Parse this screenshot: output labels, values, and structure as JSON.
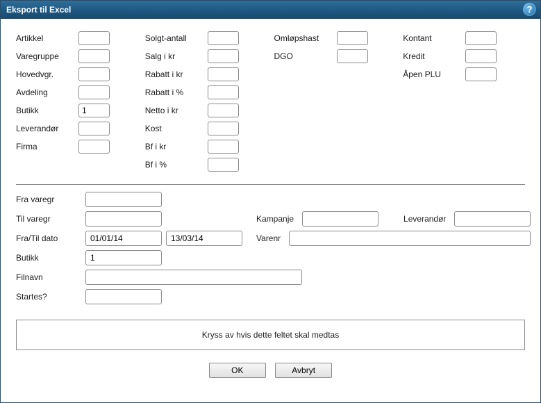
{
  "title": "Eksport til Excel",
  "columns": {
    "c1": [
      {
        "label": "Artikkel",
        "value": ""
      },
      {
        "label": "Varegruppe",
        "value": ""
      },
      {
        "label": "Hovedvgr.",
        "value": ""
      },
      {
        "label": "Avdeling",
        "value": ""
      },
      {
        "label": "Butikk",
        "value": "1"
      },
      {
        "label": "Leverandør",
        "value": ""
      },
      {
        "label": "Firma",
        "value": ""
      }
    ],
    "c2": [
      {
        "label": "Solgt-antall",
        "value": ""
      },
      {
        "label": "Salg i kr",
        "value": ""
      },
      {
        "label": "Rabatt i kr",
        "value": ""
      },
      {
        "label": "Rabatt i %",
        "value": ""
      },
      {
        "label": "Netto i kr",
        "value": ""
      },
      {
        "label": "Kost",
        "value": ""
      },
      {
        "label": "Bf i kr",
        "value": ""
      },
      {
        "label": "Bf i %",
        "value": ""
      }
    ],
    "c3": [
      {
        "label": "Omløpshast",
        "value": ""
      },
      {
        "label": "DGO",
        "value": ""
      }
    ],
    "c4": [
      {
        "label": "Kontant",
        "value": ""
      },
      {
        "label": "Kredit",
        "value": ""
      },
      {
        "label": "Åpen PLU",
        "value": ""
      }
    ]
  },
  "filters": {
    "fra_varegr_label": "Fra varegr",
    "fra_varegr": "",
    "til_varegr_label": "Til varegr",
    "til_varegr": "",
    "kampanje_label": "Kampanje",
    "kampanje": "",
    "leverandor_label": "Leverandør",
    "leverandor": "",
    "fratil_dato_label": "Fra/Til dato",
    "fra_dato": "01/01/14",
    "til_dato": "13/03/14",
    "varenr_label": "Varenr",
    "varenr": "",
    "butikk_label": "Butikk",
    "butikk": "1",
    "filnavn_label": "Filnavn",
    "filnavn": "",
    "startes_label": "Startes?",
    "startes": ""
  },
  "hint": "Kryss av hvis dette feltet skal medtas",
  "buttons": {
    "ok": "OK",
    "cancel": "Avbryt"
  }
}
